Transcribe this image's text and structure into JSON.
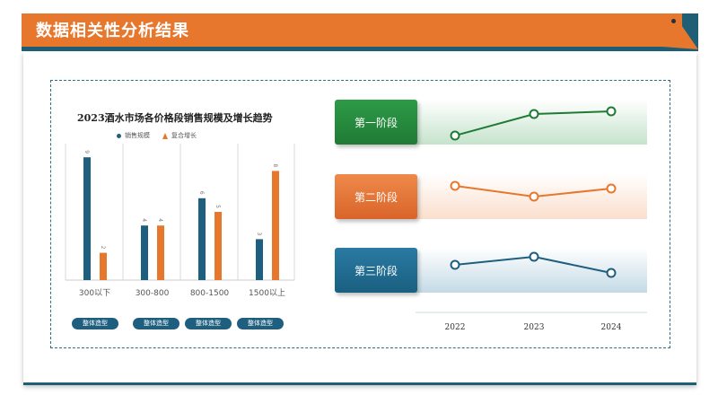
{
  "header": {
    "title": "数据相关性分析结果"
  },
  "chart_data": [
    {
      "type": "bar",
      "title": "2023酒水市场各价格段销售规模及增长趋势",
      "categories": [
        "300以下",
        "300-800",
        "800-1500",
        "1500以上"
      ],
      "series": [
        {
          "name": "销售规模",
          "values": [
            9,
            4,
            6,
            3
          ],
          "color": "#1e5f7f"
        },
        {
          "name": "复合增长",
          "values": [
            2,
            4,
            5,
            8
          ],
          "color": "#e8772e"
        }
      ],
      "ylim": [
        0,
        10
      ],
      "grid": false,
      "legend": "top"
    },
    {
      "type": "line",
      "x": [
        "2022",
        "2023",
        "2024"
      ],
      "series": [
        {
          "name": "第一阶段",
          "values": [
            2.0,
            3.6,
            3.8
          ],
          "color": "#1f7a35"
        },
        {
          "name": "第二阶段",
          "values": [
            3.8,
            3.0,
            3.6
          ],
          "color": "#e8772e"
        },
        {
          "name": "第三阶段",
          "values": [
            3.4,
            4.0,
            2.8
          ],
          "color": "#1e5f7f"
        }
      ]
    }
  ],
  "pills": [
    "整体造型",
    "整体造型",
    "整体造型",
    "整体造型"
  ],
  "colors": {
    "orange": "#e8772e",
    "teal": "#1e5f7f",
    "green": "#1f7a35"
  }
}
